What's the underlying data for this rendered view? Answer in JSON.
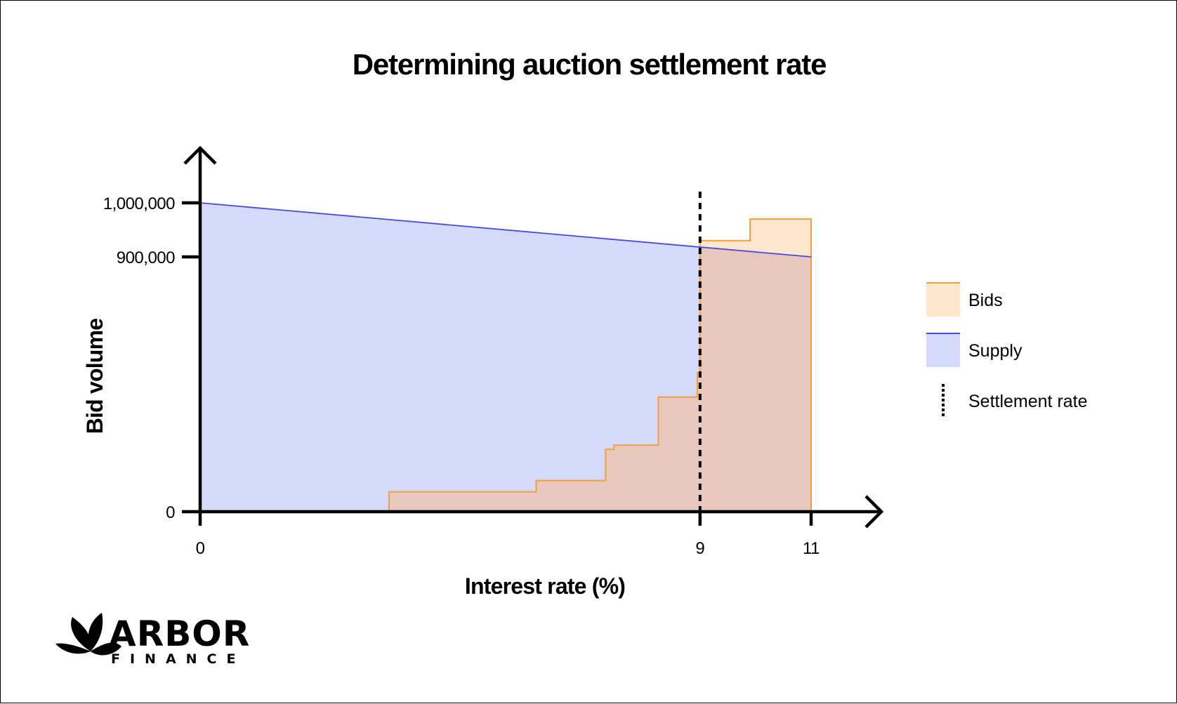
{
  "chart_data": {
    "type": "area",
    "title": "Determining auction settlement rate",
    "xlabel": "Interest rate (%)",
    "ylabel": "Bid volume",
    "xlim": [
      0,
      11
    ],
    "ylim": [
      0,
      1000000
    ],
    "x_ticks": [
      {
        "value": 0,
        "label": "0"
      },
      {
        "value": 9,
        "label": "9"
      },
      {
        "value": 11,
        "label": "11"
      }
    ],
    "y_ticks": [
      {
        "value": 0,
        "label": "0"
      },
      {
        "value": 900000,
        "label": "900,000"
      },
      {
        "value": 1000000,
        "label": "1,000,000"
      }
    ],
    "series": [
      {
        "name": "Supply",
        "kind": "line-area",
        "color": "#4a4ae0",
        "fill": "#d5d9fa",
        "x": [
          0,
          11
        ],
        "y": [
          1000000,
          900000
        ]
      },
      {
        "name": "Bids",
        "kind": "step-area",
        "color": "#f0a040",
        "fill": "#fde6cc",
        "x": [
          3.4,
          6.05,
          7.3,
          7.45,
          8.25,
          8.95,
          9.0,
          9.9,
          11.0
        ],
        "y": [
          70000,
          110000,
          220000,
          235000,
          405000,
          490000,
          930000,
          970000,
          1005000
        ]
      }
    ],
    "settlement_rate": {
      "name": "Settlement rate",
      "x": 9
    },
    "legend": {
      "position": "right",
      "items": [
        {
          "label": "Bids",
          "color": "#f0a040",
          "fill": "#fde6cc",
          "style": "area"
        },
        {
          "label": "Supply",
          "color": "#4a4ae0",
          "fill": "#d5d9fa",
          "style": "area"
        },
        {
          "label": "Settlement rate",
          "color": "#000000",
          "style": "dotted-line"
        }
      ]
    },
    "grid": false
  },
  "logo": {
    "name": "ARBOR",
    "sub": "FINANCE"
  }
}
